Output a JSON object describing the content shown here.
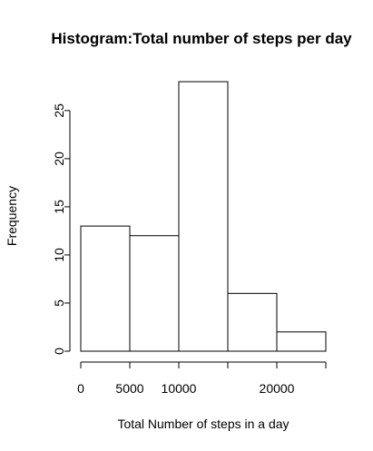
{
  "chart_data": {
    "type": "bar",
    "title": "Histogram:Total number of steps per day",
    "xlabel": "Total Number of steps in a day",
    "ylabel": "Frequency",
    "bins": [
      {
        "from": 0,
        "to": 5000,
        "count": 13
      },
      {
        "from": 5000,
        "to": 10000,
        "count": 12
      },
      {
        "from": 10000,
        "to": 15000,
        "count": 28
      },
      {
        "from": 15000,
        "to": 20000,
        "count": 6
      },
      {
        "from": 20000,
        "to": 25000,
        "count": 2
      }
    ],
    "xlim": [
      0,
      25000
    ],
    "ylim": [
      0,
      28
    ],
    "x_ticks": [
      0,
      5000,
      10000,
      15000,
      20000,
      25000
    ],
    "x_tick_labels": [
      "0",
      "5000",
      "10000",
      "",
      "20000",
      ""
    ],
    "y_ticks": [
      0,
      5,
      10,
      15,
      20,
      25
    ],
    "y_tick_labels": [
      "0",
      "5",
      "10",
      "15",
      "20",
      "25"
    ],
    "grid": false,
    "colors": {
      "bar_fill": "#ffffff",
      "bar_stroke": "#000000"
    }
  }
}
